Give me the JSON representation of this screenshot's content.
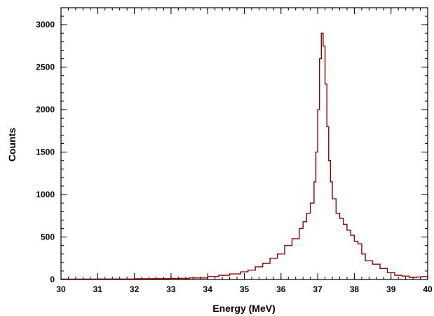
{
  "chart_data": {
    "type": "line",
    "xlabel": "Energy (MeV)",
    "ylabel": "Counts",
    "xlim": [
      30,
      40
    ],
    "ylim": [
      0,
      3200
    ],
    "x_ticks": [
      "30",
      "31",
      "32",
      "33",
      "34",
      "35",
      "36",
      "37",
      "38",
      "39",
      "40"
    ],
    "y_ticks": [
      "0",
      "500",
      "1000",
      "1500",
      "2000",
      "2500",
      "3000"
    ],
    "x_minor_step": 0.2,
    "y_minor_step": 100,
    "grid": false,
    "line_color": "#8b0000",
    "x": [
      30.0,
      30.5,
      31.0,
      31.5,
      32.0,
      32.5,
      33.0,
      33.5,
      34.0,
      34.3,
      34.6,
      34.9,
      35.1,
      35.3,
      35.5,
      35.7,
      35.9,
      36.1,
      36.3,
      36.5,
      36.6,
      36.7,
      36.8,
      36.9,
      36.95,
      37.0,
      37.05,
      37.1,
      37.15,
      37.2,
      37.25,
      37.3,
      37.35,
      37.4,
      37.5,
      37.6,
      37.7,
      37.8,
      37.9,
      38.0,
      38.1,
      38.2,
      38.3,
      38.5,
      38.7,
      38.9,
      39.1,
      39.3,
      39.5,
      39.7,
      39.85,
      40.0
    ],
    "y": [
      5,
      5,
      6,
      6,
      8,
      10,
      12,
      18,
      35,
      50,
      65,
      90,
      110,
      150,
      190,
      250,
      300,
      400,
      480,
      600,
      680,
      780,
      900,
      1150,
      1500,
      2000,
      2600,
      2900,
      2750,
      2300,
      1800,
      1400,
      1150,
      950,
      780,
      720,
      650,
      580,
      520,
      450,
      420,
      300,
      220,
      180,
      130,
      80,
      50,
      40,
      25,
      30,
      35,
      10
    ]
  }
}
